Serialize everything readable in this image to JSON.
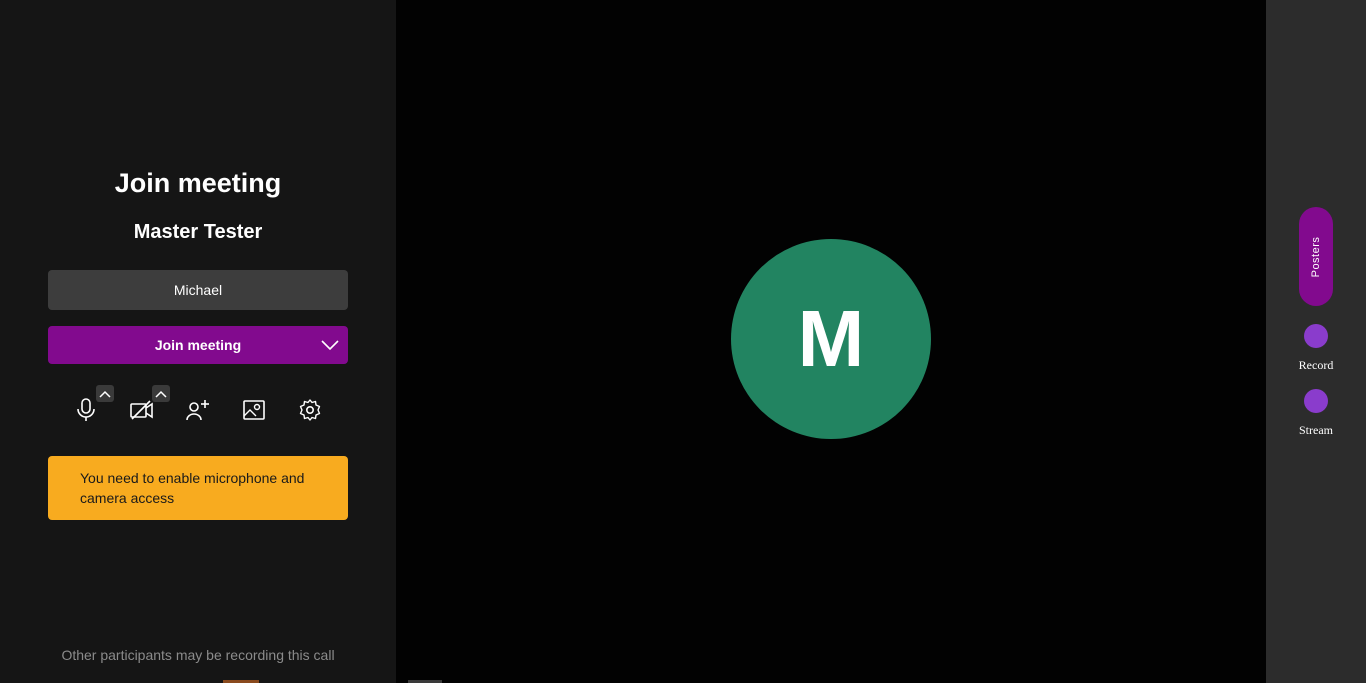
{
  "join_panel": {
    "title": "Join meeting",
    "meeting_name": "Master Tester",
    "name_input": {
      "value": "Michael",
      "placeholder": ""
    },
    "join_button_label": "Join meeting",
    "toolbar": [
      {
        "name": "microphone-icon"
      },
      {
        "name": "camera-off-icon"
      },
      {
        "name": "add-participant-icon"
      },
      {
        "name": "background-image-icon"
      },
      {
        "name": "settings-gear-icon"
      }
    ],
    "warning_text": "You need to enable microphone and camera access",
    "recording_notice": "Other participants may be recording this call"
  },
  "video": {
    "avatar_initial": "M",
    "avatar_color": "#228461"
  },
  "right_rail": {
    "posters_label": "Posters",
    "record_label": "Record",
    "stream_label": "Stream"
  },
  "colors": {
    "accent_purple": "#820a8e",
    "warning_yellow": "#f8ab1f",
    "rail_dot_purple": "#8a3ccc"
  }
}
